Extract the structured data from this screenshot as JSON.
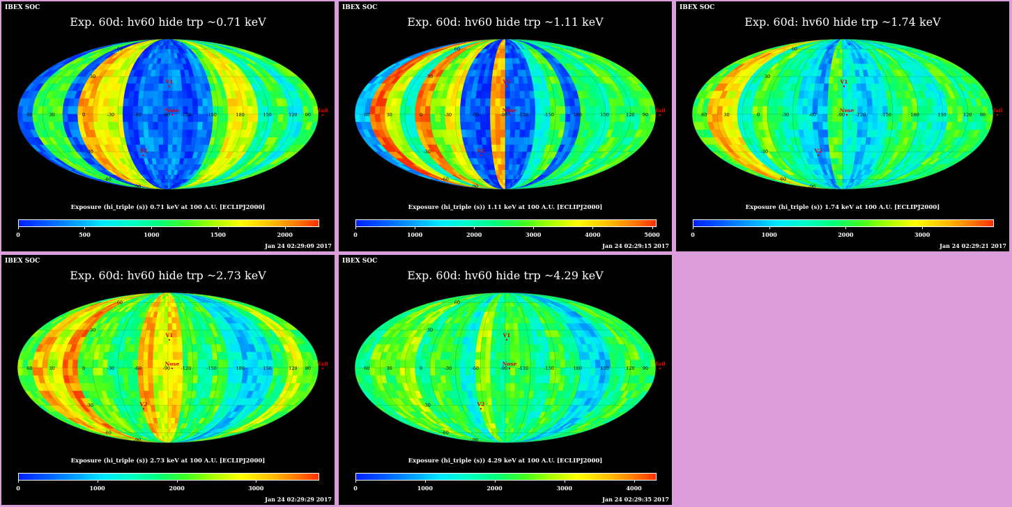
{
  "panels": [
    {
      "soc": "IBEX SOC",
      "title": "Exp.   60d: hv60 hide trp ~0.71 keV",
      "colorbar_title": "Exposure (hi_triple (s))  0.71 keV at 100 A.U. [ECLIPJ2000]",
      "timestamp": "Jan 24 02:29:09 2017",
      "ticks": [
        {
          "label": "0",
          "frac": 0.0
        },
        {
          "label": "500",
          "frac": 0.221
        },
        {
          "label": "1000",
          "frac": 0.443
        },
        {
          "label": "1500",
          "frac": 0.664
        },
        {
          "label": "2000",
          "frac": 0.886
        }
      ],
      "seed": 11,
      "bias": [
        0.1,
        0.55,
        0.55,
        0.1,
        0.85,
        0.75,
        0.7,
        0.05,
        0.15,
        0.1,
        0.15,
        0.05,
        0.15,
        0.55,
        0.75,
        0.7,
        0.4,
        0.55,
        0.35,
        0.55
      ]
    },
    {
      "soc": "IBEX SOC",
      "title": "Exp.   60d: hv60 hide trp ~1.11 keV",
      "colorbar_title": "Exposure (hi_triple (s))  1.11 keV at 100 A.U. [ECLIPJ2000]",
      "timestamp": "Jan 24 02:29:15 2017",
      "ticks": [
        {
          "label": "0",
          "frac": 0.0
        },
        {
          "label": "1000",
          "frac": 0.197
        },
        {
          "label": "2000",
          "frac": 0.394
        },
        {
          "label": "3000",
          "frac": 0.591
        },
        {
          "label": "4000",
          "frac": 0.788
        },
        {
          "label": "5000",
          "frac": 0.985
        }
      ],
      "seed": 23,
      "bias": [
        0.2,
        0.95,
        0.7,
        0.4,
        0.9,
        0.6,
        0.75,
        0.1,
        0.05,
        0.85,
        0.1,
        0.1,
        0.35,
        0.55,
        0.1,
        0.5,
        0.4,
        0.55,
        0.45,
        0.55
      ]
    },
    {
      "soc": "IBEX SOC",
      "title": "Exp.   60d: hv60 hide trp ~1.74 keV",
      "colorbar_title": "Exposure (hi_triple (s))  1.74 keV at 100 A.U. [ECLIPJ2000]",
      "timestamp": "Jan 24 02:29:21 2017",
      "ticks": [
        {
          "label": "0",
          "frac": 0.0
        },
        {
          "label": "1000",
          "frac": 0.254
        },
        {
          "label": "2000",
          "frac": 0.508
        },
        {
          "label": "3000",
          "frac": 0.762
        }
      ],
      "seed": 37,
      "bias": [
        0.55,
        0.85,
        0.75,
        0.4,
        0.6,
        0.45,
        0.4,
        0.3,
        0.2,
        0.55,
        0.35,
        0.25,
        0.3,
        0.45,
        0.55,
        0.4,
        0.35,
        0.55,
        0.45,
        0.5
      ]
    },
    {
      "soc": "IBEX SOC",
      "title": "Exp.   60d: hv60 hide trp ~2.73 keV",
      "colorbar_title": "Exposure (hi_triple (s))  2.73 keV at 100 A.U. [ECLIPJ2000]",
      "timestamp": "Jan 24 02:29:29 2017",
      "ticks": [
        {
          "label": "0",
          "frac": 0.0
        },
        {
          "label": "1000",
          "frac": 0.263
        },
        {
          "label": "2000",
          "frac": 0.527
        },
        {
          "label": "3000",
          "frac": 0.79
        }
      ],
      "seed": 41,
      "bias": [
        0.55,
        0.85,
        0.7,
        0.9,
        0.55,
        0.6,
        0.45,
        0.5,
        0.85,
        0.7,
        0.8,
        0.55,
        0.45,
        0.55,
        0.35,
        0.25,
        0.3,
        0.5,
        0.7,
        0.55
      ]
    },
    {
      "soc": "IBEX SOC",
      "title": "Exp.   60d: hv60 hide trp ~4.29 keV",
      "colorbar_title": "Exposure (hi_triple (s))  4.29 keV at 100 A.U. [ECLIPJ2000]",
      "timestamp": "Jan 24 02:29:35 2017",
      "ticks": [
        {
          "label": "0",
          "frac": 0.0
        },
        {
          "label": "1000",
          "frac": 0.231
        },
        {
          "label": "2000",
          "frac": 0.462
        },
        {
          "label": "3000",
          "frac": 0.694
        },
        {
          "label": "4000",
          "frac": 0.925
        }
      ],
      "seed": 53,
      "bias": [
        0.45,
        0.6,
        0.55,
        0.65,
        0.45,
        0.55,
        0.5,
        0.35,
        0.65,
        0.45,
        0.55,
        0.5,
        0.4,
        0.55,
        0.45,
        0.3,
        0.25,
        0.45,
        0.55,
        0.5
      ]
    }
  ],
  "map_labels": {
    "lon": [
      "60",
      "30",
      "0",
      "-30",
      "-60",
      "-90",
      "-120",
      "-150",
      "180",
      "150",
      "120",
      "90"
    ],
    "lat": [
      "60",
      "30",
      "-30",
      "-60"
    ],
    "lat_edge": [
      "-90"
    ],
    "markers": {
      "v1": "V1",
      "v2": "V2",
      "nose": "Nose",
      "tail": "Tail"
    }
  }
}
